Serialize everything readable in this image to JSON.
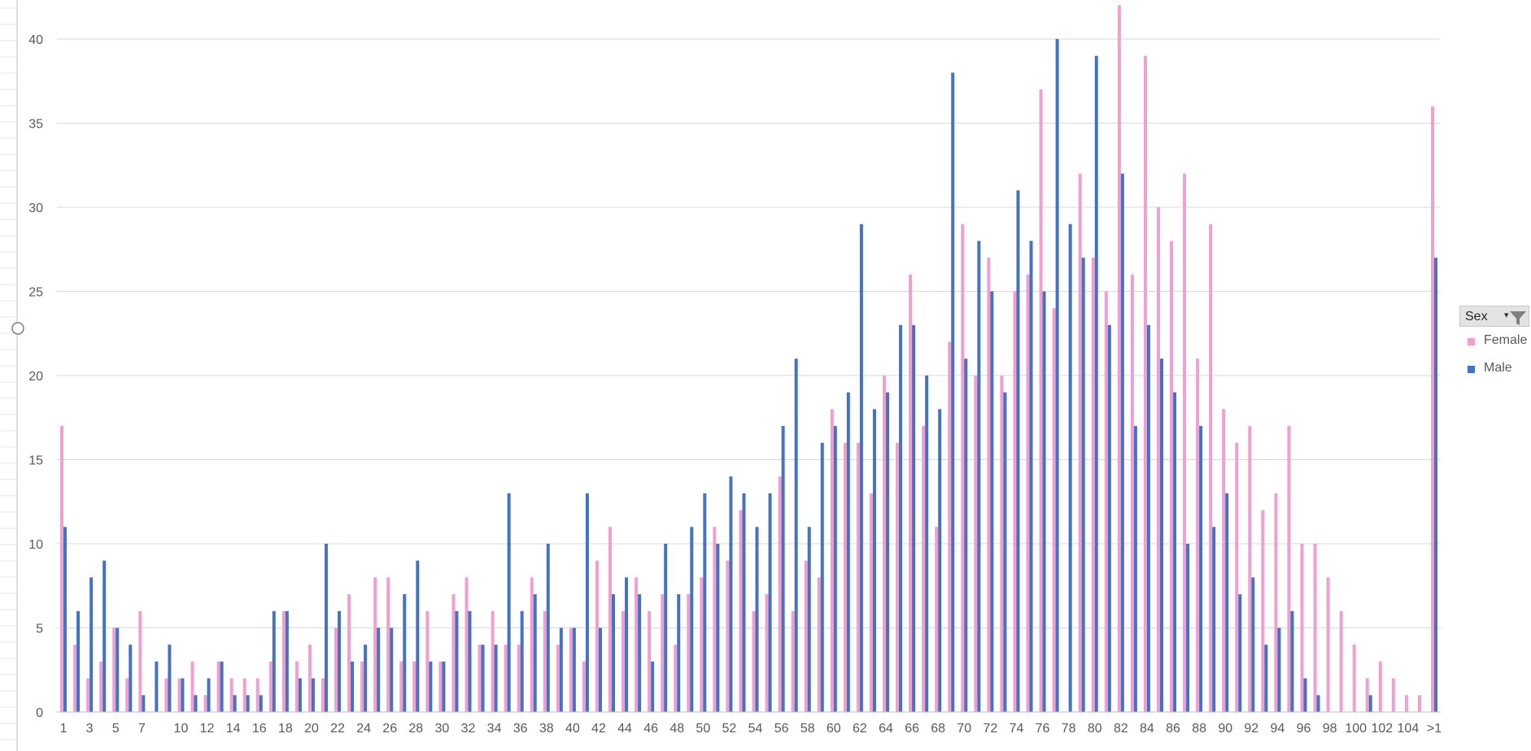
{
  "colors": {
    "female": "#f19ed0",
    "male": "#4472c4",
    "grid": "#d9d9d9",
    "axis": "#bfbfbf",
    "text": "#595959"
  },
  "legend": {
    "filter_label": "Sex",
    "filter_icon": "funnel-icon",
    "dropdown_icon": "dropdown-caret-icon",
    "items": [
      {
        "label": "Female",
        "color": "#f19ed0"
      },
      {
        "label": "Male",
        "color": "#4472c4"
      }
    ]
  },
  "chart_data": {
    "type": "bar",
    "categories": [
      "1",
      "2",
      "3",
      "4",
      "5",
      "6",
      "7",
      "8",
      "9",
      "10",
      "11",
      "12",
      "13",
      "14",
      "15",
      "16",
      "17",
      "18",
      "19",
      "20",
      "21",
      "22",
      "23",
      "24",
      "25",
      "26",
      "27",
      "28",
      "29",
      "30",
      "31",
      "32",
      "33",
      "34",
      "35",
      "36",
      "37",
      "38",
      "39",
      "40",
      "41",
      "42",
      "43",
      "44",
      "45",
      "46",
      "47",
      "48",
      "49",
      "50",
      "51",
      "52",
      "53",
      "54",
      "55",
      "56",
      "57",
      "58",
      "59",
      "60",
      "61",
      "62",
      "63",
      "64",
      "65",
      "66",
      "67",
      "68",
      "69",
      "70",
      "71",
      "72",
      "73",
      "74",
      "75",
      "76",
      "77",
      "78",
      "79",
      "80",
      "81",
      "82",
      "83",
      "84",
      "85",
      "86",
      "87",
      "88",
      "89",
      "90",
      "91",
      "92",
      "93",
      "94",
      "95",
      "96",
      "97",
      "98",
      "99",
      "100",
      "101",
      "102",
      "103",
      "104",
      "105",
      ">1"
    ],
    "x_tick_labels": [
      "1",
      "3",
      "5",
      "7",
      "10",
      "12",
      "14",
      "16",
      "18",
      "20",
      "22",
      "24",
      "26",
      "28",
      "30",
      "32",
      "34",
      "36",
      "38",
      "40",
      "42",
      "44",
      "46",
      "48",
      "50",
      "52",
      "54",
      "56",
      "58",
      "60",
      "62",
      "64",
      "66",
      "68",
      "70",
      "72",
      "74",
      "76",
      "78",
      "80",
      "82",
      "84",
      "86",
      "88",
      "90",
      "92",
      "94",
      "96",
      "98",
      "100",
      "102",
      "104",
      ">1"
    ],
    "series": [
      {
        "name": "Female",
        "values": [
          17,
          4,
          2,
          3,
          5,
          2,
          6,
          0,
          2,
          2,
          3,
          1,
          3,
          2,
          2,
          2,
          3,
          6,
          3,
          4,
          2,
          5,
          7,
          3,
          8,
          8,
          3,
          3,
          6,
          3,
          7,
          8,
          4,
          6,
          4,
          4,
          8,
          6,
          4,
          5,
          3,
          9,
          11,
          6,
          8,
          6,
          7,
          4,
          7,
          8,
          11,
          9,
          12,
          6,
          7,
          14,
          6,
          9,
          8,
          18,
          16,
          16,
          13,
          20,
          16,
          26,
          17,
          11,
          22,
          29,
          20,
          27,
          20,
          25,
          26,
          37,
          24,
          0,
          32,
          27,
          25,
          42,
          26,
          39,
          30,
          28,
          32,
          21,
          29,
          18,
          16,
          17,
          12,
          13,
          17,
          10,
          10,
          8,
          6,
          4,
          2,
          3,
          2,
          1,
          1,
          36
        ]
      },
      {
        "name": "Male",
        "values": [
          11,
          6,
          8,
          9,
          5,
          4,
          1,
          3,
          4,
          2,
          1,
          2,
          3,
          1,
          1,
          1,
          6,
          6,
          2,
          2,
          10,
          6,
          3,
          4,
          5,
          5,
          7,
          9,
          3,
          3,
          6,
          6,
          4,
          4,
          13,
          6,
          7,
          10,
          5,
          5,
          13,
          5,
          7,
          8,
          7,
          3,
          10,
          7,
          11,
          13,
          10,
          14,
          13,
          11,
          13,
          17,
          21,
          11,
          16,
          17,
          19,
          29,
          18,
          19,
          23,
          23,
          20,
          18,
          38,
          21,
          28,
          25,
          19,
          31,
          28,
          25,
          40,
          29,
          27,
          39,
          23,
          32,
          17,
          23,
          21,
          19,
          10,
          17,
          11,
          13,
          7,
          8,
          4,
          5,
          6,
          2,
          1,
          0,
          0,
          0,
          1,
          0,
          0,
          0,
          0,
          27
        ]
      }
    ],
    "ylim": [
      0,
      40
    ],
    "y_ticks": [
      0,
      5,
      10,
      15,
      20,
      25,
      30,
      35,
      40
    ],
    "grid": true,
    "legend_position": "right"
  }
}
